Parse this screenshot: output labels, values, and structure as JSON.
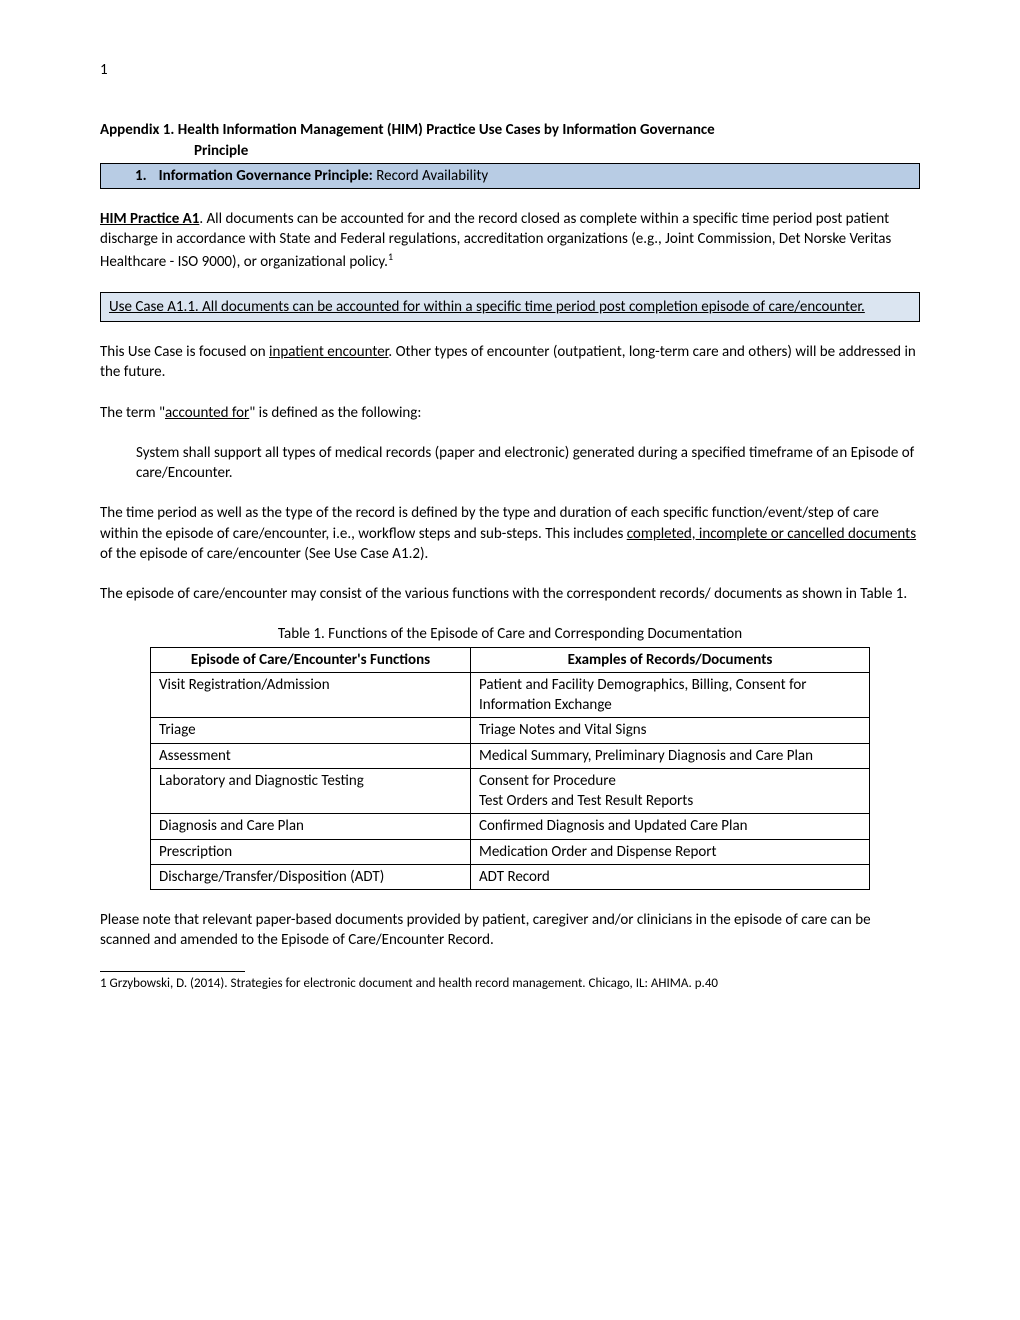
{
  "pageNumber": "1",
  "appendix": {
    "titleLine1": "Appendix 1. Health Information Management (HIM) Practice Use Cases by Information Governance",
    "titleLine2": "Principle"
  },
  "principle": {
    "num": "1.",
    "label": "Information Governance Principle: ",
    "value": "Record Availability"
  },
  "himPractice": {
    "label": "HIM Practice A1",
    "text1": ". All documents can be accounted for and the record closed as complete within  a specific time period post patient  discharge in accordance with State and Federal regulations, accreditation organizations (e.g., Joint Commission, Det Norske Veritas Healthcare - ISO 9000), or organizational policy.",
    "sup": "1"
  },
  "useCaseBox": "Use Case A1.1. All documents can be accounted for within a specific time period post completion episode of care/encounter.",
  "para1": {
    "t1": "This Use Case is focused on ",
    "u1": "inpatient encounter",
    "t2": ". Other types of encounter (outpatient, long-term care and others) will be addressed in the future."
  },
  "para2": {
    "t1": "The term \"",
    "u1": "accounted for",
    "t2": "\" is defined as the following:"
  },
  "indented": "System shall support all types of medical records (paper and electronic) generated during a specified timeframe of an Episode of care/Encounter.",
  "para3": {
    "t1": "The time period as well as the type of the record is defined by the type and duration of each specific function/event/step of care within the episode of care/encounter, i.e., workflow steps and sub-steps. This includes ",
    "u1": "completed, incomplete or cancelled documents",
    "t2": " of the episode of care/encounter (See Use Case A1.2)."
  },
  "para4": "The episode of care/encounter may consist of the various functions with the correspondent records/ documents as shown in Table 1.",
  "tableCaption": "Table 1. Functions of the Episode of Care and Corresponding Documentation",
  "table": {
    "headers": [
      "Episode of Care/Encounter's Functions",
      "Examples of Records/Documents"
    ],
    "rows": [
      [
        "Visit Registration/Admission",
        "Patient and Facility Demographics, Billing, Consent for Information Exchange"
      ],
      [
        "Triage",
        "Triage Notes and Vital Signs"
      ],
      [
        "Assessment",
        "Medical Summary, Preliminary Diagnosis and Care Plan"
      ],
      [
        "Laboratory and Diagnostic Testing",
        "Consent for Procedure\nTest Orders and Test Result Reports"
      ],
      [
        "Diagnosis and Care Plan",
        "Confirmed Diagnosis and Updated Care Plan"
      ],
      [
        "Prescription",
        "Medication Order and Dispense Report"
      ],
      [
        "Discharge/Transfer/Disposition  (ADT)",
        "ADT Record"
      ]
    ]
  },
  "para5": "Please note that relevant paper-based documents provided by patient, caregiver and/or clinicians in the episode of care can be scanned and amended to the Episode of Care/Encounter Record.",
  "footnote": "1  Grzybowski, D. (2014). Strategies for electronic document and health record management. Chicago, IL: AHIMA. p.40"
}
